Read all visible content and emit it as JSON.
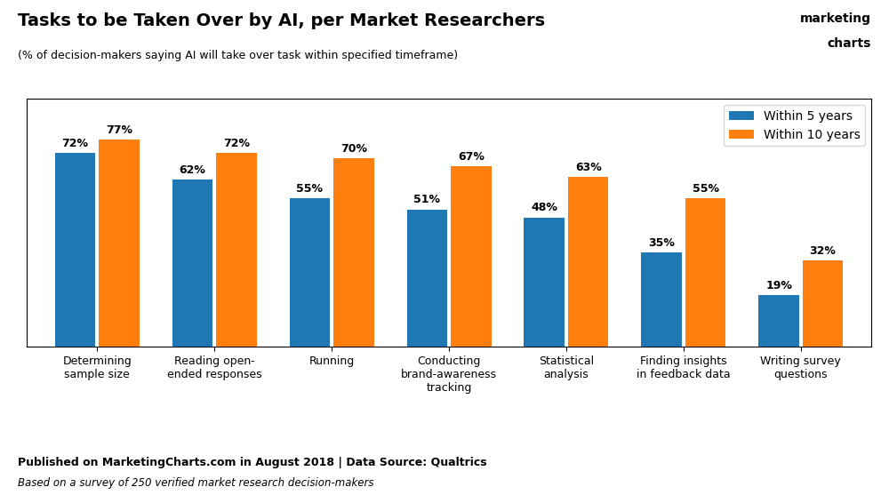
{
  "chart_data": {
    "type": "bar",
    "title": "Tasks to be Taken Over by AI, per Market Researchers",
    "subtitle": "(% of decision-makers saying AI will take over task within specified timeframe)",
    "categories": [
      "Determining\nsample size",
      "Reading open-\nended responses",
      "Running",
      "Conducting\nbrand-awareness\ntracking",
      "Statistical\nanalysis",
      "Finding insights\nin feedback data",
      "Writing survey\nquestions"
    ],
    "series": [
      {
        "name": "Within 5 years",
        "values": [
          72,
          62,
          55,
          51,
          48,
          35,
          19
        ],
        "value_labels": [
          "72%",
          "62%",
          "55%",
          "51%",
          "48%",
          "35%",
          "19%"
        ]
      },
      {
        "name": "Within 10 years",
        "values": [
          77,
          72,
          70,
          67,
          63,
          55,
          32
        ],
        "value_labels": [
          "77%",
          "72%",
          "70%",
          "67%",
          "63%",
          "55%",
          "32%"
        ]
      }
    ],
    "ylim": [
      0,
      92
    ],
    "tick_labels": "x",
    "data_labels": true,
    "grid": false,
    "legend": "upper right",
    "annotations": [
      "Published on MarketingCharts.com in August 2018 | Data Source: Qualtrics",
      "Based on a survey of 250 verified market research decision-makers",
      "marketing",
      "charts"
    ]
  }
}
